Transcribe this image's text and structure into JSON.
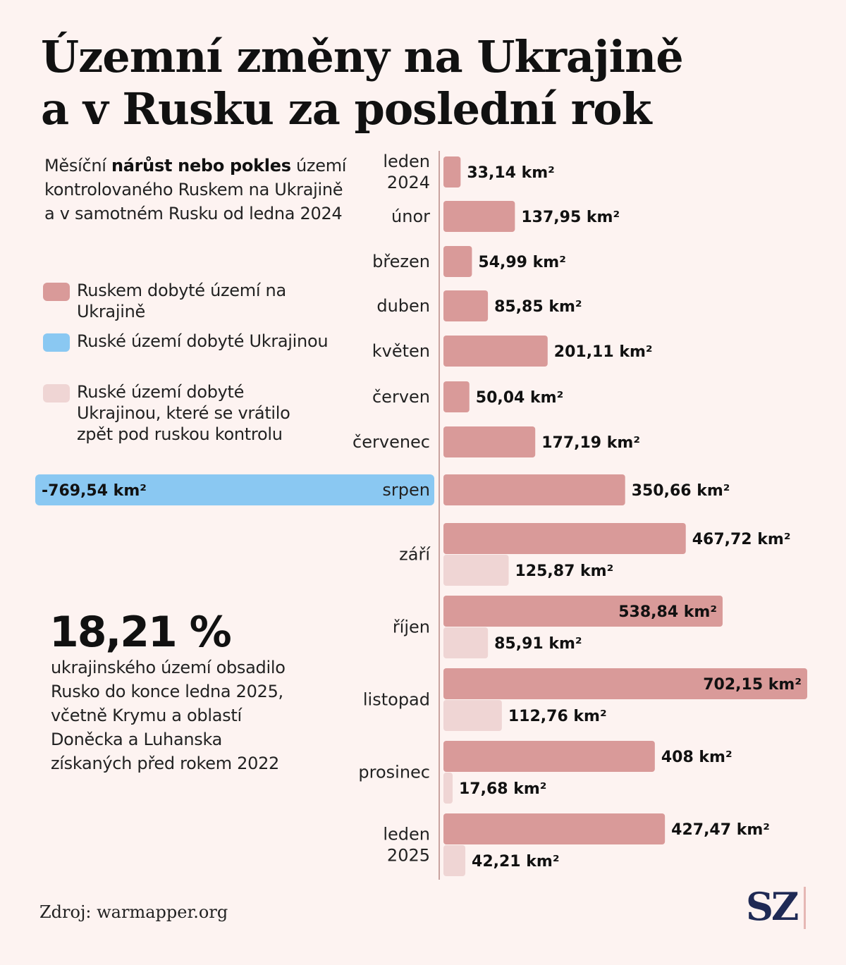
{
  "title": {
    "line1": "Územní změny na Ukrajině",
    "line2": "a v Rusku za poslední rok"
  },
  "subtitle": {
    "pre": "Měsíční ",
    "bold": "nárůst nebo pokles",
    "post": " území kontrolovaného Ruskem na Ukrajině a v samotném Rusku od ledna 2024"
  },
  "legend": [
    {
      "label": "Ruskem dobyté území na Ukrajině",
      "color": "#d99a99"
    },
    {
      "label": "Ruské území dobyté Ukrajinou",
      "color": "#8ac8f2"
    },
    {
      "label": "Ruské území dobyté Ukrajinou, které se vrátilo zpět pod ruskou kontrolu",
      "color": "#efd5d4"
    }
  ],
  "stat": {
    "value": "18,21 %",
    "text": "ukrajinského území obsadilo Rusko do konce ledna 2025, včetně Krymu a oblastí Doněcka a Luhanska získaných před rokem 2022"
  },
  "source": "Zdroj: warmapper.org",
  "logo": "SZ",
  "chart_data": {
    "type": "bar",
    "orientation": "horizontal",
    "unit": "km²",
    "categories": [
      [
        "leden",
        "2024"
      ],
      [
        "únor"
      ],
      [
        "březen"
      ],
      [
        "duben"
      ],
      [
        "květen"
      ],
      [
        "červen"
      ],
      [
        "červenec"
      ],
      [
        "srpen"
      ],
      [
        "září"
      ],
      [
        "říjen"
      ],
      [
        "listopad"
      ],
      [
        "prosinec"
      ],
      [
        "leden",
        "2025"
      ]
    ],
    "series": [
      {
        "name": "Ruskem dobyté území na Ukrajině",
        "color": "#d99a99",
        "values": [
          33.14,
          137.95,
          54.99,
          85.85,
          201.11,
          50.04,
          177.19,
          350.66,
          467.72,
          538.84,
          702.15,
          408,
          427.47
        ],
        "labels": [
          "33,14 km²",
          "137,95 km²",
          "54,99 km²",
          "85,85 km²",
          "201,11 km²",
          "50,04 km²",
          "177,19 km²",
          "350,66 km²",
          "467,72 km²",
          "538,84 km²",
          "702,15 km²",
          "408 km²",
          "427,47 km²"
        ]
      },
      {
        "name": "Ruské území dobyté Ukrajinou",
        "color": "#8ac8f2",
        "values": [
          null,
          null,
          null,
          null,
          null,
          null,
          null,
          -769.54,
          null,
          null,
          null,
          null,
          null
        ],
        "labels": [
          null,
          null,
          null,
          null,
          null,
          null,
          null,
          "-769,54 km²",
          null,
          null,
          null,
          null,
          null
        ]
      },
      {
        "name": "Ruské území dobyté Ukrajinou, které se vrátilo zpět pod ruskou kontrolu",
        "color": "#efd5d4",
        "values": [
          null,
          null,
          null,
          null,
          null,
          null,
          null,
          null,
          125.87,
          85.91,
          112.76,
          17.68,
          42.21
        ],
        "labels": [
          null,
          null,
          null,
          null,
          null,
          null,
          null,
          null,
          "125,87 km²",
          "85,91 km²",
          "112,76 km²",
          "17,68 km²",
          "42,21 km²"
        ]
      }
    ],
    "axis_color": "#c9a3a0"
  }
}
